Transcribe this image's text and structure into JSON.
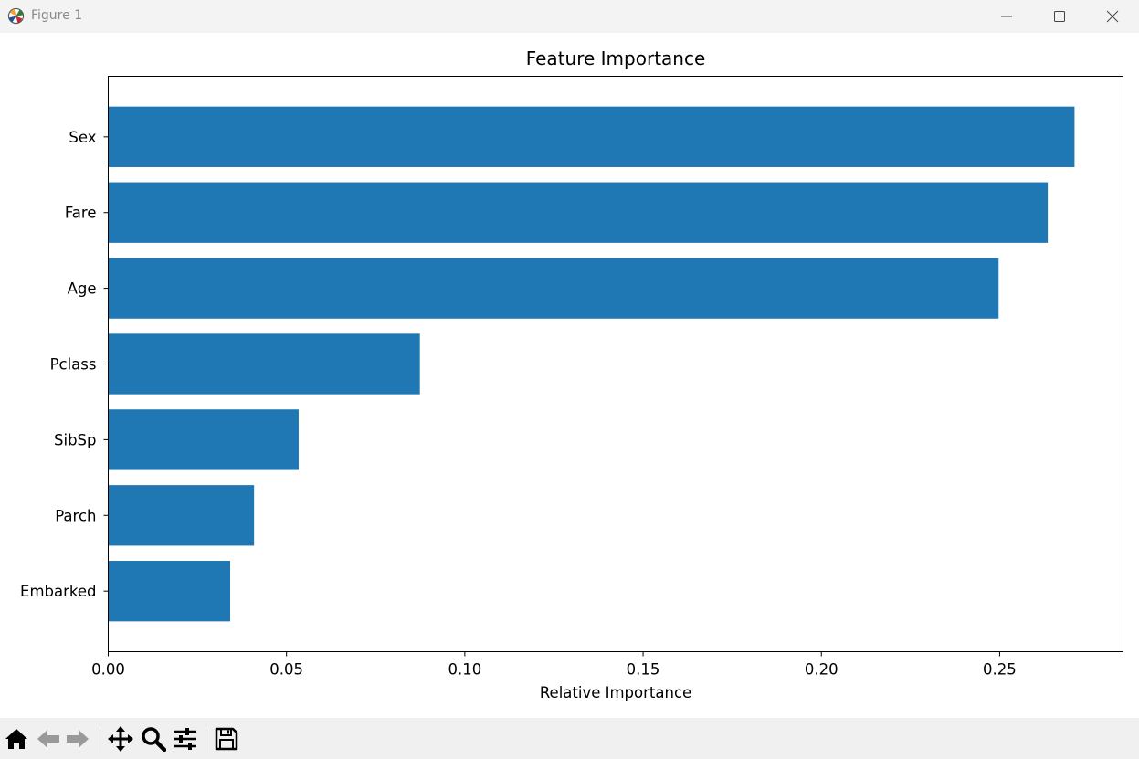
{
  "window": {
    "title": "Figure 1"
  },
  "toolbar": {
    "buttons": [
      {
        "name": "home-icon"
      },
      {
        "name": "back-icon"
      },
      {
        "name": "forward-icon"
      },
      {
        "name": "pan-icon"
      },
      {
        "name": "zoom-icon"
      },
      {
        "name": "configure-subplots-icon"
      },
      {
        "name": "save-icon"
      }
    ]
  },
  "colors": {
    "bar": "#1f77b4",
    "titlebar": "#f3f3f3",
    "toolbar": "#f0f0f0"
  },
  "chart_data": {
    "type": "bar",
    "orientation": "horizontal",
    "title": "Feature Importance",
    "xlabel": "Relative Importance",
    "ylabel": "",
    "categories": [
      "Sex",
      "Fare",
      "Age",
      "Pclass",
      "SibSp",
      "Parch",
      "Embarked"
    ],
    "values": [
      0.271,
      0.2635,
      0.2497,
      0.0874,
      0.0534,
      0.0409,
      0.0342
    ],
    "xlim": [
      0,
      0.2846
    ],
    "xticks": [
      "0.00",
      "0.05",
      "0.10",
      "0.15",
      "0.20",
      "0.25"
    ],
    "xtick_values": [
      0,
      0.05,
      0.1,
      0.15,
      0.2,
      0.25
    ],
    "grid": false,
    "bar_color": "#1f77b4"
  }
}
